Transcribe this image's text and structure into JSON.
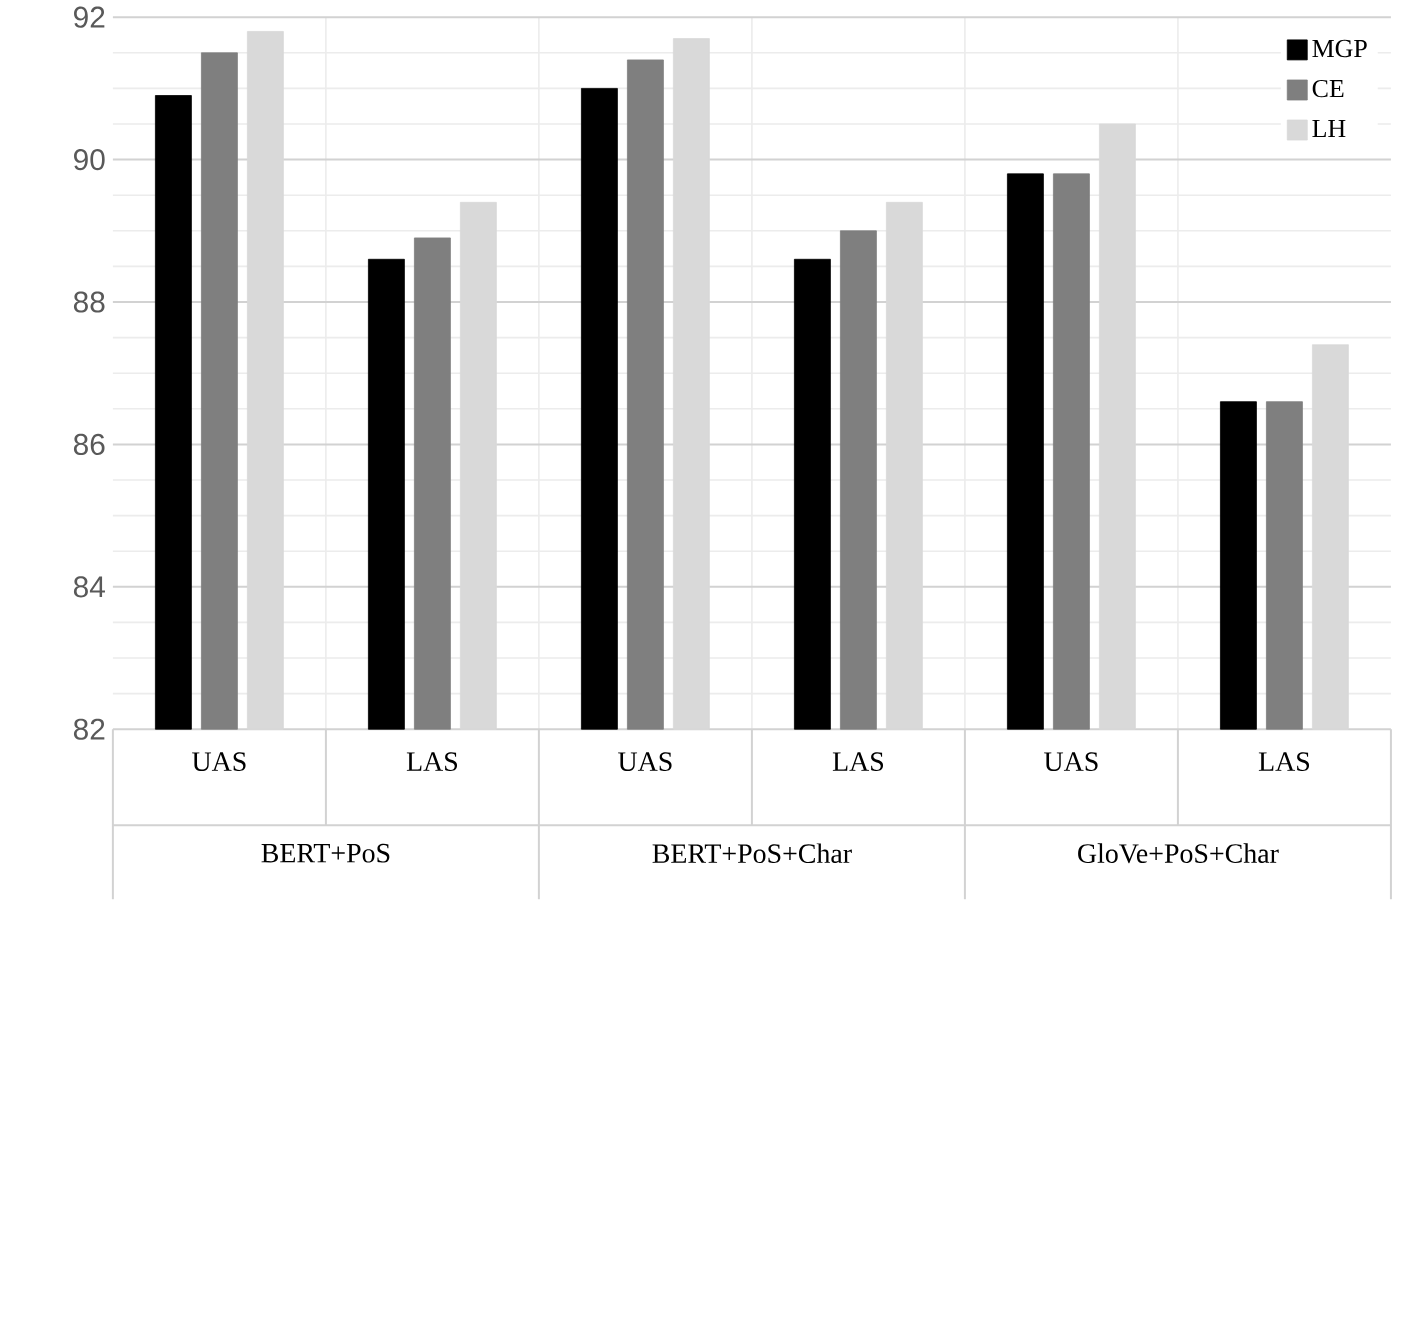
{
  "chart_data": {
    "type": "bar",
    "categories": [
      "UAS",
      "LAS",
      "UAS",
      "LAS",
      "UAS",
      "LAS"
    ],
    "series": [
      {
        "name": "MGP",
        "color": "#000000",
        "values": [
          90.9,
          88.6,
          91.0,
          88.6,
          89.8,
          86.6
        ]
      },
      {
        "name": "CE",
        "color": "#7f7f7f",
        "values": [
          91.5,
          88.9,
          91.4,
          89.0,
          89.8,
          86.6
        ]
      },
      {
        "name": "LH",
        "color": "#d9d9d9",
        "values": [
          91.8,
          89.4,
          91.7,
          89.4,
          90.5,
          87.4
        ]
      }
    ],
    "annotations": [
      "BERT+PoS",
      "BERT+PoS+Char",
      "GloVe+PoS+Char"
    ],
    "ylim": [
      82,
      92
    ],
    "yticks": [
      82,
      84,
      86,
      88,
      90,
      92
    ],
    "grid": true,
    "legend": "top right"
  }
}
